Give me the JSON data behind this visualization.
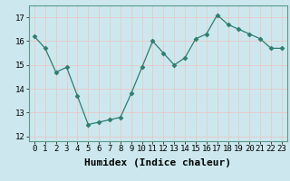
{
  "x": [
    0,
    1,
    2,
    3,
    4,
    5,
    6,
    7,
    8,
    9,
    10,
    11,
    12,
    13,
    14,
    15,
    16,
    17,
    18,
    19,
    20,
    21,
    22,
    23
  ],
  "y": [
    16.2,
    15.7,
    14.7,
    14.9,
    13.7,
    12.5,
    12.6,
    12.7,
    12.8,
    13.8,
    14.9,
    16.0,
    15.5,
    15.0,
    15.3,
    16.1,
    16.3,
    17.1,
    16.7,
    16.5,
    16.3,
    16.1,
    15.7,
    15.7
  ],
  "line_color": "#2e7d6e",
  "marker": "D",
  "marker_size": 2.5,
  "bg_color": "#cce8ee",
  "grid_color": "#e8c8c8",
  "xlabel": "Humidex (Indice chaleur)",
  "ylim": [
    11.8,
    17.5
  ],
  "xlim": [
    -0.5,
    23.5
  ],
  "yticks": [
    12,
    13,
    14,
    15,
    16,
    17
  ],
  "xticks": [
    0,
    1,
    2,
    3,
    4,
    5,
    6,
    7,
    8,
    9,
    10,
    11,
    12,
    13,
    14,
    15,
    16,
    17,
    18,
    19,
    20,
    21,
    22,
    23
  ],
  "tick_fontsize": 6.5,
  "xlabel_fontsize": 8
}
